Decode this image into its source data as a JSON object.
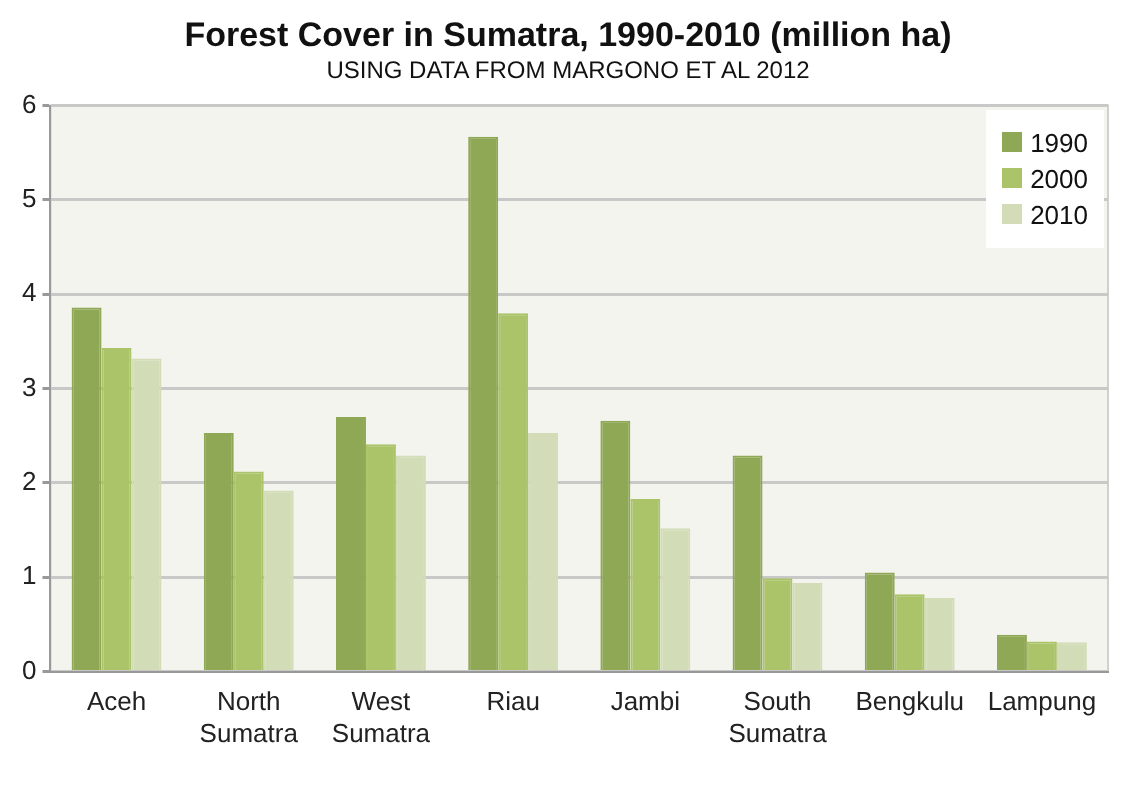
{
  "chart_data": {
    "type": "bar",
    "title": "Forest Cover in Sumatra, 1990-2010 (million ha)",
    "subtitle": "USING DATA FROM MARGONO ET AL 2012",
    "categories": [
      "Aceh",
      "North Sumatra",
      "West Sumatra",
      "Riau",
      "Jambi",
      "South Sumatra",
      "Bengkulu",
      "Lampung"
    ],
    "series": [
      {
        "name": "1990",
        "color": "#8fa855",
        "values": [
          3.86,
          2.53,
          2.7,
          5.67,
          2.66,
          2.29,
          1.05,
          0.39
        ]
      },
      {
        "name": "2000",
        "color": "#abc46a",
        "values": [
          3.43,
          2.12,
          2.41,
          3.8,
          1.83,
          0.99,
          0.82,
          0.32
        ]
      },
      {
        "name": "2010",
        "color": "#d2dcb6",
        "values": [
          3.32,
          1.92,
          2.29,
          2.53,
          1.52,
          0.94,
          0.78,
          0.31
        ]
      }
    ],
    "ylim": [
      0,
      6
    ],
    "yticks": [
      0,
      1,
      2,
      3,
      4,
      5,
      6
    ],
    "grid": "y",
    "legend": "top right"
  }
}
